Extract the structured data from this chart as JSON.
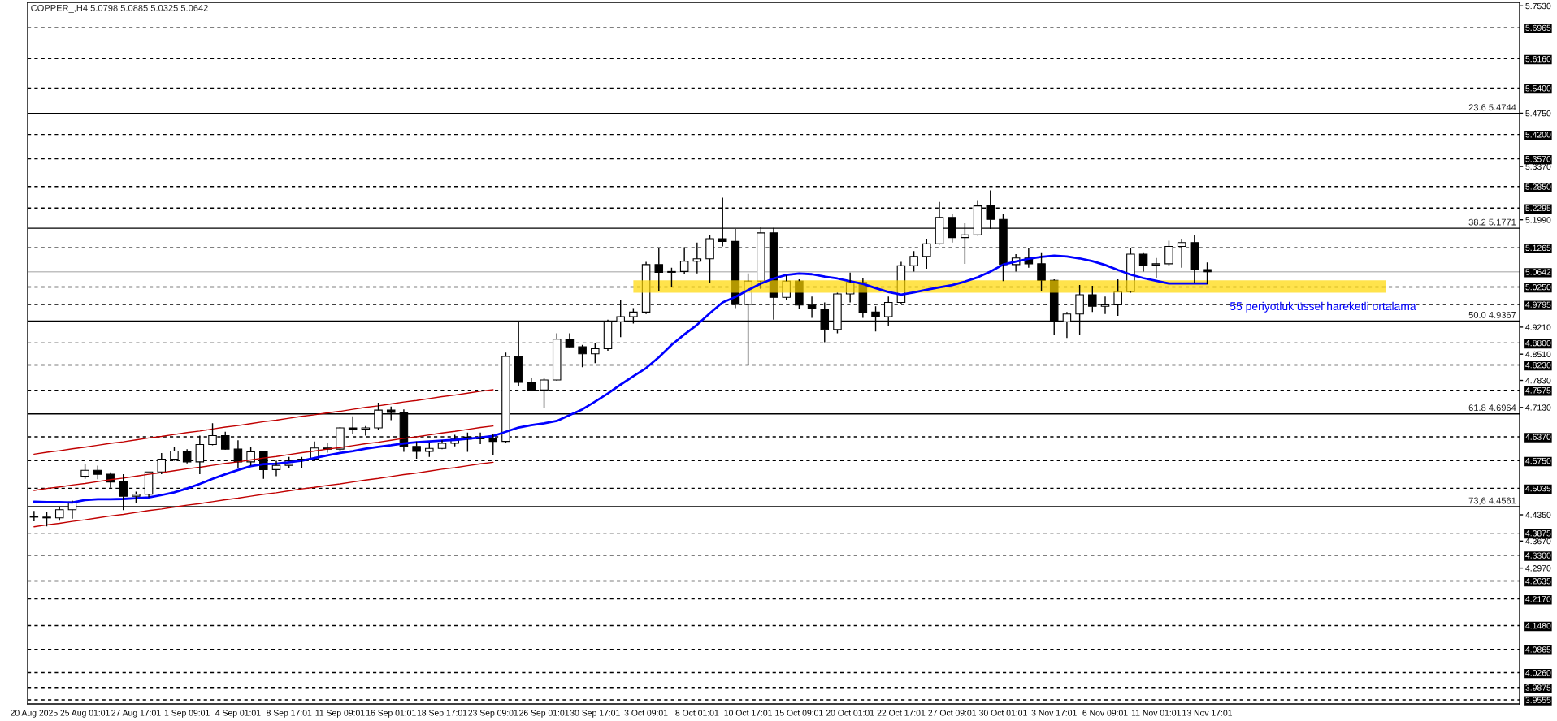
{
  "chart_data": {
    "type": "candlestick",
    "title": "COPPER_,H4 5.0798 5.0885 5.0325 5.0642",
    "categories": [
      "20 Aug 2025",
      null,
      null,
      null,
      "25 Aug 01:01",
      null,
      null,
      null,
      "27 Aug 17:01",
      null,
      null,
      null,
      "1 Sep 09:01",
      null,
      null,
      null,
      "4 Sep 01:01",
      null,
      null,
      null,
      "8 Sep 17:01",
      null,
      null,
      null,
      "11 Sep 09:01",
      null,
      null,
      null,
      "16 Sep 01:01",
      null,
      null,
      null,
      "18 Sep 17:01",
      null,
      null,
      null,
      "23 Sep 09:01",
      null,
      null,
      null,
      "26 Sep 01:01",
      null,
      null,
      null,
      "30 Sep 17:01",
      null,
      null,
      null,
      "3 Oct 09:01",
      null,
      null,
      null,
      "8 Oct 01:01",
      null,
      null,
      null,
      "10 Oct 17:01",
      null,
      null,
      null,
      "15 Oct 09:01",
      null,
      null,
      null,
      "20 Oct 01:01",
      null,
      null,
      null,
      "22 Oct 17:01",
      null,
      null,
      null,
      "27 Oct 09:01",
      null,
      null,
      null,
      "30 Oct 01:01",
      null,
      null,
      null,
      "3 Nov 17:01",
      null,
      null,
      null,
      "6 Nov 09:01",
      null,
      null,
      null,
      "11 Nov 01:01",
      null,
      null,
      null,
      "13 Nov 17:01",
      null,
      null,
      null,
      null,
      null,
      null,
      null,
      null,
      null,
      null,
      null,
      null,
      null,
      null,
      null,
      null,
      null,
      null,
      null,
      null,
      null,
      null,
      null,
      null
    ],
    "ohlc": [
      [
        4.43,
        4.445,
        4.418,
        4.429
      ],
      [
        4.429,
        4.442,
        4.405,
        4.427
      ],
      [
        4.427,
        4.455,
        4.42,
        4.448
      ],
      [
        4.448,
        4.472,
        4.425,
        4.468
      ],
      [
        4.535,
        4.566,
        4.528,
        4.55
      ],
      [
        4.55,
        4.562,
        4.527,
        4.54
      ],
      [
        4.54,
        4.545,
        4.505,
        4.52
      ],
      [
        4.52,
        4.54,
        4.447,
        4.483
      ],
      [
        4.483,
        4.495,
        4.465,
        4.488
      ],
      [
        4.488,
        4.546,
        4.48,
        4.546
      ],
      [
        4.546,
        4.595,
        4.54,
        4.579
      ],
      [
        4.579,
        4.61,
        4.575,
        4.6
      ],
      [
        4.6,
        4.605,
        4.568,
        4.572
      ],
      [
        4.572,
        4.64,
        4.54,
        4.617
      ],
      [
        4.617,
        4.672,
        4.615,
        4.64
      ],
      [
        4.64,
        4.65,
        4.603,
        4.605
      ],
      [
        4.605,
        4.628,
        4.555,
        4.572
      ],
      [
        4.572,
        4.61,
        4.562,
        4.598
      ],
      [
        4.598,
        4.6,
        4.528,
        4.552
      ],
      [
        4.552,
        4.575,
        4.535,
        4.563
      ],
      [
        4.563,
        4.585,
        4.555,
        4.575
      ],
      [
        4.575,
        4.585,
        4.555,
        4.579
      ],
      [
        4.579,
        4.625,
        4.575,
        4.608
      ],
      [
        4.608,
        4.62,
        4.596,
        4.605
      ],
      [
        4.605,
        4.662,
        4.6,
        4.66
      ],
      [
        4.66,
        4.69,
        4.645,
        4.657
      ],
      [
        4.657,
        4.665,
        4.64,
        4.66
      ],
      [
        4.66,
        4.725,
        4.655,
        4.706
      ],
      [
        4.706,
        4.715,
        4.68,
        4.7
      ],
      [
        4.7,
        4.708,
        4.598,
        4.612
      ],
      [
        4.612,
        4.625,
        4.58,
        4.599
      ],
      [
        4.599,
        4.62,
        4.585,
        4.607
      ],
      [
        4.607,
        4.628,
        4.605,
        4.62
      ],
      [
        4.62,
        4.642,
        4.612,
        4.631
      ],
      [
        4.631,
        4.648,
        4.598,
        4.636
      ],
      [
        4.636,
        4.648,
        4.618,
        4.632
      ],
      [
        4.632,
        4.645,
        4.59,
        4.625
      ],
      [
        4.625,
        4.855,
        4.62,
        4.845
      ],
      [
        4.845,
        4.937,
        4.768,
        4.778
      ],
      [
        4.778,
        4.79,
        4.756,
        4.758
      ],
      [
        4.758,
        4.79,
        4.712,
        4.784
      ],
      [
        4.784,
        4.905,
        4.782,
        4.89
      ],
      [
        4.89,
        4.905,
        4.868,
        4.87
      ],
      [
        4.87,
        4.875,
        4.817,
        4.852
      ],
      [
        4.852,
        4.88,
        4.828,
        4.865
      ],
      [
        4.865,
        4.94,
        4.86,
        4.935
      ],
      [
        4.935,
        4.99,
        4.895,
        4.948
      ],
      [
        4.948,
        4.97,
        4.93,
        4.96
      ],
      [
        4.96,
        5.09,
        4.955,
        5.083
      ],
      [
        5.083,
        5.125,
        5.015,
        5.063
      ],
      [
        5.063,
        5.075,
        5.025,
        5.065
      ],
      [
        5.065,
        5.128,
        5.058,
        5.092
      ],
      [
        5.092,
        5.14,
        5.06,
        5.098
      ],
      [
        5.098,
        5.16,
        5.035,
        5.15
      ],
      [
        5.15,
        5.256,
        5.13,
        5.143
      ],
      [
        5.143,
        5.175,
        4.97,
        4.98
      ],
      [
        4.98,
        5.06,
        4.823,
        5.04
      ],
      [
        5.04,
        5.18,
        5.02,
        5.165
      ],
      [
        5.165,
        5.178,
        4.94,
        4.998
      ],
      [
        4.998,
        5.055,
        4.99,
        5.04
      ],
      [
        5.04,
        5.045,
        4.968,
        4.978
      ],
      [
        4.978,
        5.0,
        4.945,
        4.968
      ],
      [
        4.968,
        4.985,
        4.882,
        4.915
      ],
      [
        4.915,
        5.01,
        4.905,
        5.007
      ],
      [
        5.007,
        5.062,
        4.985,
        5.037
      ],
      [
        5.037,
        5.048,
        4.945,
        4.96
      ],
      [
        4.96,
        4.975,
        4.91,
        4.948
      ],
      [
        4.948,
        5.0,
        4.925,
        4.985
      ],
      [
        4.985,
        5.09,
        4.98,
        5.08
      ],
      [
        5.08,
        5.118,
        5.065,
        5.104
      ],
      [
        5.104,
        5.15,
        5.072,
        5.137
      ],
      [
        5.137,
        5.245,
        5.135,
        5.205
      ],
      [
        5.205,
        5.215,
        5.14,
        5.153
      ],
      [
        5.153,
        5.19,
        5.085,
        5.16
      ],
      [
        5.16,
        5.25,
        5.158,
        5.235
      ],
      [
        5.235,
        5.275,
        5.175,
        5.2
      ],
      [
        5.2,
        5.215,
        5.04,
        5.083
      ],
      [
        5.083,
        5.11,
        5.065,
        5.1
      ],
      [
        5.1,
        5.125,
        5.075,
        5.085
      ],
      [
        5.085,
        5.115,
        5.015,
        5.042
      ],
      [
        5.042,
        5.045,
        4.9,
        4.935
      ],
      [
        4.935,
        4.96,
        4.893,
        4.955
      ],
      [
        4.955,
        5.03,
        4.9,
        5.005
      ],
      [
        5.005,
        5.028,
        4.96,
        4.975
      ],
      [
        4.975,
        5.0,
        4.955,
        4.979
      ],
      [
        4.979,
        5.045,
        4.95,
        5.013
      ],
      [
        5.013,
        5.125,
        5.01,
        5.11
      ],
      [
        5.11,
        5.115,
        5.065,
        5.082
      ],
      [
        5.082,
        5.1,
        5.048,
        5.085
      ],
      [
        5.085,
        5.145,
        5.08,
        5.13
      ],
      [
        5.13,
        5.15,
        5.075,
        5.14
      ],
      [
        5.14,
        5.16,
        5.035,
        5.07
      ],
      [
        5.07,
        5.0885,
        5.0325,
        5.0642
      ],
      null,
      null,
      null,
      null,
      null,
      null,
      null,
      null,
      null,
      null,
      null,
      null,
      null,
      null,
      null,
      null,
      null,
      null,
      null,
      null,
      null,
      null,
      null,
      null
    ],
    "series": [
      {
        "type": "line",
        "color": "#ffd700",
        "values": [
          null,
          null,
          null,
          null,
          null,
          null,
          null,
          null,
          null,
          null,
          null,
          null,
          null,
          null,
          null,
          null,
          null,
          null,
          null,
          null,
          null,
          null,
          null,
          null,
          null,
          null,
          null,
          null,
          null,
          null,
          null,
          null,
          null,
          null,
          null,
          null,
          null,
          null,
          null,
          null,
          null,
          null,
          null,
          null,
          null,
          null,
          null,
          null,
          null,
          null,
          null,
          null,
          null,
          null,
          null,
          null,
          null,
          null,
          null,
          null,
          null,
          null,
          null,
          null,
          null,
          null,
          null,
          null,
          null,
          null,
          null,
          null,
          null,
          null,
          null,
          null,
          null,
          null,
          null,
          null,
          null,
          null,
          null,
          null,
          null,
          null,
          null,
          null,
          null,
          null,
          null,
          null,
          null,
          null,
          null,
          null,
          null,
          null,
          null,
          null,
          null,
          null,
          null,
          null,
          null,
          null,
          null,
          null,
          null,
          null,
          null,
          null,
          null,
          null,
          null,
          null,
          null
        ],
        "upper": [
          null,
          null,
          null,
          null,
          null,
          null,
          null,
          null,
          null,
          null,
          null,
          null,
          null,
          null,
          null,
          null,
          null,
          null,
          null,
          null,
          null,
          null,
          null,
          null,
          null,
          null,
          null,
          null,
          null,
          null,
          null,
          null,
          null,
          null,
          null,
          null,
          null,
          null,
          null,
          null,
          null,
          null,
          null,
          null,
          null,
          null,
          null,
          5.042,
          5.042,
          5.042,
          5.042,
          5.042,
          5.042,
          5.042,
          5.042,
          5.042,
          5.042,
          5.042,
          5.042,
          5.042,
          5.042,
          5.042,
          5.042,
          5.042,
          5.042,
          5.042,
          5.042,
          5.042,
          5.042,
          5.042,
          5.042,
          5.042,
          5.042,
          5.042,
          5.042,
          5.042,
          5.042,
          5.042,
          5.042,
          5.042,
          5.042,
          5.042,
          5.042,
          5.042,
          5.042,
          5.042,
          5.042,
          5.042,
          5.042,
          5.042,
          5.042,
          5.042,
          5.042,
          5.042,
          5.042,
          5.042,
          5.042,
          5.042,
          5.042,
          5.042,
          5.042,
          5.042,
          5.042,
          5.042,
          5.042,
          5.042,
          5.042,
          null,
          null,
          null,
          null,
          null,
          null,
          null,
          null,
          null,
          null
        ],
        "lower": [
          null,
          null,
          null,
          null,
          null,
          null,
          null,
          null,
          null,
          null,
          null,
          null,
          null,
          null,
          null,
          null,
          null,
          null,
          null,
          null,
          null,
          null,
          null,
          null,
          null,
          null,
          null,
          null,
          null,
          null,
          null,
          null,
          null,
          null,
          null,
          null,
          null,
          null,
          null,
          null,
          null,
          null,
          null,
          null,
          null,
          null,
          null,
          5.01,
          5.01,
          5.01,
          5.01,
          5.01,
          5.01,
          5.01,
          5.01,
          5.01,
          5.01,
          5.01,
          5.01,
          5.01,
          5.01,
          5.01,
          5.01,
          5.01,
          5.01,
          5.01,
          5.01,
          5.01,
          5.01,
          5.01,
          5.01,
          5.01,
          5.01,
          5.01,
          5.01,
          5.01,
          5.01,
          5.01,
          5.01,
          5.01,
          5.01,
          5.01,
          5.01,
          5.01,
          5.01,
          5.01,
          5.01,
          5.01,
          5.01,
          5.01,
          5.01,
          5.01,
          5.01,
          5.01,
          5.01,
          5.01,
          5.01,
          5.01,
          5.01,
          5.01,
          5.01,
          5.01,
          5.01,
          5.01,
          5.01,
          5.01,
          5.01,
          null,
          null,
          null,
          null,
          null,
          null,
          null,
          null,
          null,
          null
        ]
      },
      {
        "type": "line",
        "color": "#c00000",
        "values": [
          4.592,
          4.597,
          4.601,
          4.606,
          4.61,
          4.615,
          4.62,
          4.624,
          4.629,
          4.634,
          4.638,
          4.643,
          4.648,
          4.652,
          4.657,
          4.662,
          4.666,
          4.671,
          4.676,
          4.68,
          4.685,
          4.69,
          4.694,
          4.699,
          4.703,
          4.708,
          4.713,
          4.717,
          4.722,
          4.727,
          4.731,
          4.736,
          4.741,
          4.745,
          4.75,
          4.755,
          4.759,
          null,
          null,
          null,
          null,
          null,
          null,
          null,
          null,
          null,
          null,
          null,
          null,
          null,
          null,
          null,
          null,
          null,
          null,
          null,
          null,
          null,
          null,
          null,
          null,
          null,
          null,
          null,
          null,
          null,
          null,
          null,
          null,
          null,
          null,
          null,
          null,
          null,
          null,
          null,
          null,
          null,
          null,
          null,
          null,
          null,
          null,
          null,
          null,
          null,
          null,
          null,
          null,
          null,
          null,
          null,
          null,
          null,
          null,
          null,
          null,
          null,
          null,
          null,
          null,
          null,
          null,
          null,
          null,
          null,
          null,
          null,
          null,
          null,
          null,
          null,
          null,
          null,
          null,
          null,
          null
        ]
      },
      {
        "type": "line",
        "color": "#c00000",
        "values": [
          4.498,
          4.503,
          4.507,
          4.512,
          4.516,
          4.521,
          4.526,
          4.53,
          4.535,
          4.54,
          4.544,
          4.549,
          4.554,
          4.558,
          4.563,
          4.568,
          4.572,
          4.577,
          4.582,
          4.586,
          4.591,
          4.596,
          4.6,
          4.605,
          4.609,
          4.614,
          4.619,
          4.623,
          4.628,
          4.633,
          4.637,
          4.642,
          4.647,
          4.651,
          4.656,
          4.661,
          4.665,
          null,
          null,
          null,
          null,
          null,
          null,
          null,
          null,
          null,
          null,
          null,
          null,
          null,
          null,
          null,
          null,
          null,
          null,
          null,
          null,
          null,
          null,
          null,
          null,
          null,
          null,
          null,
          null,
          null,
          null,
          null,
          null,
          null,
          null,
          null,
          null,
          null,
          null,
          null,
          null,
          null,
          null,
          null,
          null,
          null,
          null,
          null,
          null,
          null,
          null,
          null,
          null,
          null,
          null,
          null,
          null,
          null,
          null,
          null,
          null,
          null,
          null,
          null,
          null,
          null,
          null,
          null,
          null,
          null,
          null,
          null,
          null,
          null,
          null,
          null,
          null,
          null,
          null,
          null,
          null
        ]
      },
      {
        "type": "line",
        "color": "#c00000",
        "values": [
          4.404,
          4.409,
          4.413,
          4.418,
          4.422,
          4.427,
          4.432,
          4.436,
          4.441,
          4.446,
          4.45,
          4.455,
          4.46,
          4.464,
          4.469,
          4.474,
          4.478,
          4.483,
          4.488,
          4.492,
          4.497,
          4.502,
          4.506,
          4.511,
          4.515,
          4.52,
          4.525,
          4.529,
          4.534,
          4.539,
          4.543,
          4.548,
          4.553,
          4.557,
          4.562,
          4.567,
          4.571,
          null,
          null,
          null,
          null,
          null,
          null,
          null,
          null,
          null,
          null,
          null,
          null,
          null,
          null,
          null,
          null,
          null,
          null,
          null,
          null,
          null,
          null,
          null,
          null,
          null,
          null,
          null,
          null,
          null,
          null,
          null,
          null,
          null,
          null,
          null,
          null,
          null,
          null,
          null,
          null,
          null,
          null,
          null,
          null,
          null,
          null,
          null,
          null,
          null,
          null,
          null,
          null,
          null,
          null,
          null,
          null,
          null,
          null,
          null,
          null,
          null,
          null,
          null,
          null,
          null,
          null,
          null,
          null,
          null,
          null,
          null,
          null,
          null,
          null,
          null,
          null,
          null,
          null,
          null,
          null
        ]
      },
      {
        "type": "line",
        "name": "55 periyotluk üssel hareketli ortalama",
        "color": "#0000ff",
        "values": [
          4.469,
          4.468,
          4.468,
          4.467,
          4.473,
          4.475,
          4.475,
          4.476,
          4.478,
          4.48,
          4.486,
          4.493,
          4.503,
          4.515,
          4.528,
          4.54,
          4.551,
          4.561,
          4.566,
          4.567,
          4.571,
          4.575,
          4.582,
          4.589,
          4.595,
          4.6,
          4.606,
          4.611,
          4.615,
          4.62,
          4.623,
          4.625,
          4.627,
          4.629,
          4.632,
          4.635,
          4.639,
          4.65,
          4.661,
          4.667,
          4.672,
          4.678,
          4.693,
          4.708,
          4.728,
          4.749,
          4.772,
          4.794,
          4.815,
          4.843,
          4.875,
          4.902,
          4.927,
          4.957,
          4.985,
          4.999,
          5.017,
          5.034,
          5.047,
          5.056,
          5.06,
          5.058,
          5.052,
          5.047,
          5.04,
          5.033,
          5.022,
          5.012,
          5.005,
          5.011,
          5.018,
          5.024,
          5.03,
          5.039,
          5.05,
          5.065,
          5.083,
          5.091,
          5.098,
          5.103,
          5.106,
          5.104,
          5.099,
          5.092,
          5.082,
          5.069,
          5.057,
          5.048,
          5.041,
          5.034,
          5.034,
          5.034,
          5.034,
          null,
          null,
          null,
          null,
          null,
          null,
          null,
          null,
          null,
          null,
          null,
          null,
          null,
          null,
          null,
          null,
          null,
          null,
          null,
          null,
          null,
          null,
          null,
          null
        ]
      }
    ],
    "ref_lines": [
      {
        "axis": "y",
        "value": 5.6965,
        "label": "5.6965",
        "line_style": "dashed"
      },
      {
        "axis": "y",
        "value": 5.616,
        "label": "5.6160",
        "line_style": "dashed"
      },
      {
        "axis": "y",
        "value": 5.54,
        "label": "5.5400",
        "line_style": "dashed"
      },
      {
        "axis": "y",
        "value": 5.4744,
        "line_style": "solid"
      },
      {
        "axis": "y",
        "value": 5.42,
        "label": "5.4200",
        "line_style": "dashed"
      },
      {
        "axis": "y",
        "value": 5.357,
        "label": "5.3570",
        "line_style": "dashed"
      },
      {
        "axis": "y",
        "value": 5.285,
        "label": "5.2850",
        "line_style": "dashed"
      },
      {
        "axis": "y",
        "value": 5.2295,
        "label": "5.2295",
        "line_style": "dashed"
      },
      {
        "axis": "y",
        "value": 5.1771,
        "line_style": "solid"
      },
      {
        "axis": "y",
        "value": 5.1265,
        "label": "5.1265",
        "line_style": "dashed"
      },
      {
        "axis": "y",
        "value": 5.0642,
        "label": "5.0642",
        "line_style": "solid",
        "color": "#c0c0c0"
      },
      {
        "axis": "y",
        "value": 5.025,
        "label": "5.0250",
        "line_style": "dashed"
      },
      {
        "axis": "y",
        "value": 4.9795,
        "label": "4.9795",
        "line_style": "dashed"
      },
      {
        "axis": "y",
        "value": 4.9367,
        "line_style": "solid"
      },
      {
        "axis": "y",
        "value": 4.88,
        "label": "4.8800",
        "line_style": "dashed"
      },
      {
        "axis": "y",
        "value": 4.823,
        "label": "4.8230",
        "line_style": "dashed"
      },
      {
        "axis": "y",
        "value": 4.7575,
        "label": "4.7575",
        "line_style": "dashed"
      },
      {
        "axis": "y",
        "value": 4.6964,
        "line_style": "solid"
      },
      {
        "axis": "y",
        "value": 4.637,
        "label": "4.6370",
        "line_style": "dashed"
      },
      {
        "axis": "y",
        "value": 4.575,
        "label": "4.5750",
        "line_style": "dashed"
      },
      {
        "axis": "y",
        "value": 4.5035,
        "label": "4.5035",
        "line_style": "dashed"
      },
      {
        "axis": "y",
        "value": 4.4561,
        "line_style": "solid"
      },
      {
        "axis": "y",
        "value": 4.3875,
        "label": "4.3875",
        "line_style": "dashed"
      },
      {
        "axis": "y",
        "value": 4.33,
        "label": "4.3300",
        "line_style": "dashed"
      },
      {
        "axis": "y",
        "value": 4.2635,
        "label": "4.2635",
        "line_style": "dashed"
      },
      {
        "axis": "y",
        "value": 4.217,
        "label": "4.2170",
        "line_style": "dashed"
      },
      {
        "axis": "y",
        "value": 4.148,
        "label": "4.1480",
        "line_style": "dashed"
      },
      {
        "axis": "y",
        "value": 4.0865,
        "label": "4.0865",
        "line_style": "dashed"
      },
      {
        "axis": "y",
        "value": 4.026,
        "label": "4.0260",
        "line_style": "dashed"
      },
      {
        "axis": "y",
        "value": 3.9875,
        "label": "3.9875",
        "line_style": "dashed"
      },
      {
        "axis": "y",
        "value": 3.9555,
        "label": "3.9555",
        "line_style": "dashed"
      }
    ],
    "annotations": [
      {
        "text": "23.6 5.4744",
        "y": 5.4744
      },
      {
        "text": "38.2 5.1771",
        "y": 5.1771
      },
      {
        "text": "50.0 4.9367",
        "y": 4.9367
      },
      {
        "text": "61.8 4.6964",
        "y": 4.6964
      },
      {
        "text": "73,6 4.4561",
        "y": 4.4561
      }
    ],
    "ylim": [
      3.945,
      5.762
    ],
    "yticks": [
      {
        "value": 5.753,
        "label": "5.7530"
      },
      {
        "value": 5.475,
        "label": "5.4750"
      },
      {
        "value": 5.337,
        "label": "5.3370"
      },
      {
        "value": 5.199,
        "label": "5.1990"
      },
      {
        "value": 4.921,
        "label": "4.9210"
      },
      {
        "value": 4.851,
        "label": "4.8510"
      },
      {
        "value": 4.783,
        "label": "4.7830"
      },
      {
        "value": 4.713,
        "label": "4.7130"
      },
      {
        "value": 4.435,
        "label": "4.4350"
      },
      {
        "value": 4.367,
        "label": "4.3670"
      },
      {
        "value": 4.297,
        "label": "4.2970"
      }
    ],
    "grid": false
  }
}
